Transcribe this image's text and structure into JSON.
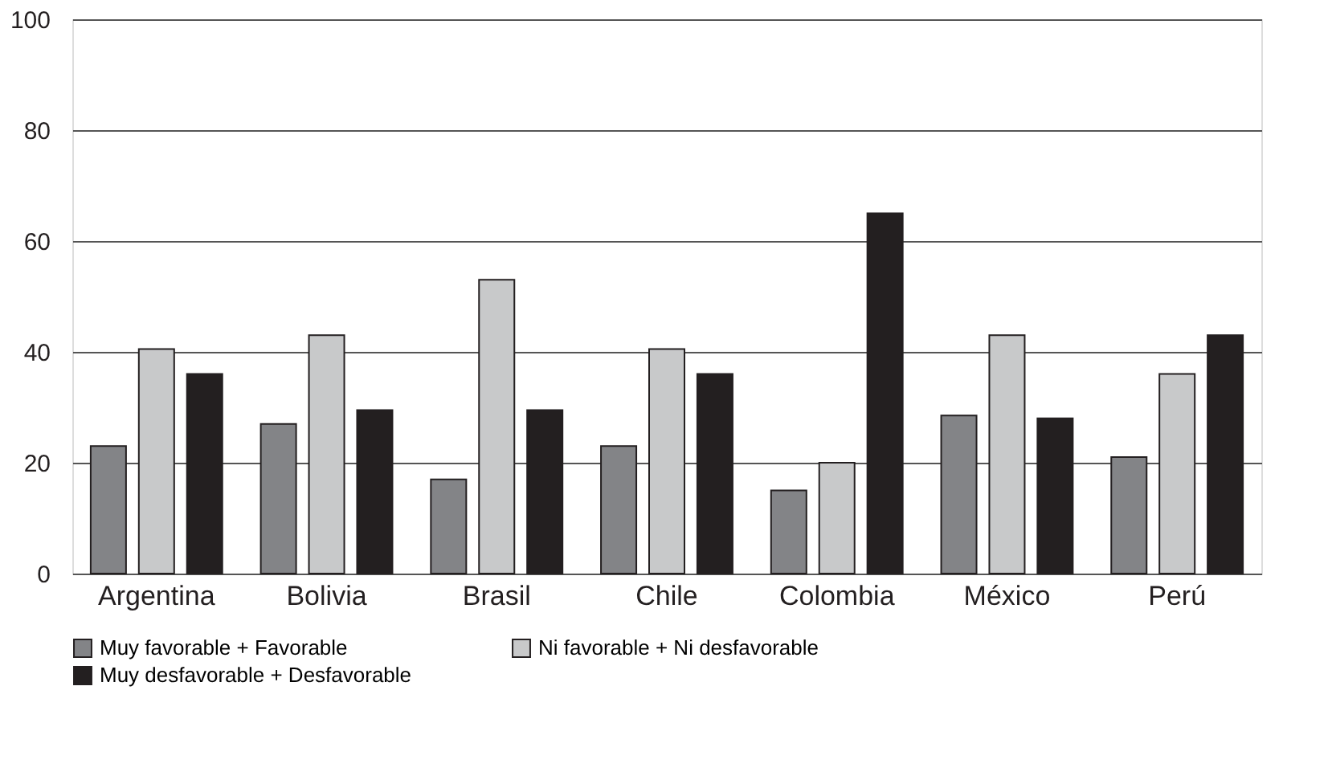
{
  "chart_data": {
    "type": "bar",
    "categories": [
      "Argentina",
      "Bolivia",
      "Brasil",
      "Chile",
      "Colombia",
      "México",
      "Perú"
    ],
    "series": [
      {
        "name": "Muy favorable + Favorable",
        "color": "#838487",
        "values": [
          23,
          27,
          17,
          23,
          15,
          28.5,
          21
        ]
      },
      {
        "name": "Ni favorable + Ni desfavorable",
        "color": "#c8c9ca",
        "values": [
          40.5,
          43,
          53,
          40.5,
          20,
          43,
          36
        ]
      },
      {
        "name": "Muy desfavorable + Desfavorable",
        "color": "#231f20",
        "values": [
          36,
          29.5,
          29.5,
          36,
          65,
          28,
          43
        ]
      }
    ],
    "ylim": [
      0,
      100
    ],
    "yticks": [
      0,
      20,
      40,
      60,
      80,
      100
    ],
    "grid": "y",
    "legend": "bottom"
  }
}
